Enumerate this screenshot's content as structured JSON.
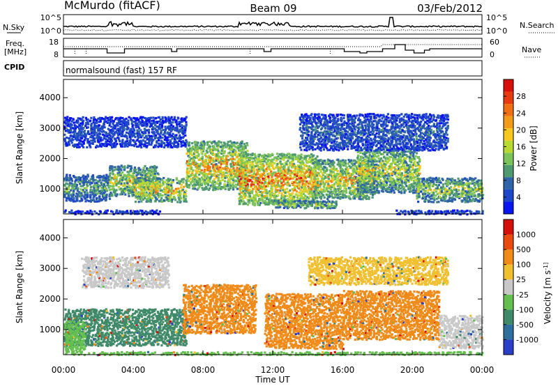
{
  "header": {
    "station": "McMurdo (fitACF)",
    "beam": "Beam 09",
    "date": "03/Feb/2012"
  },
  "nsky_panel": {
    "left_label": "N.Sky",
    "right_label": "N.Search",
    "left_ticks": [
      "10^5",
      "10^0"
    ],
    "right_ticks": [
      "10^5",
      "10^0"
    ]
  },
  "freq_panel": {
    "left_label_1": "Freq.",
    "left_label_2": "[MHz]",
    "left_ticks": [
      "18",
      "8"
    ],
    "right_ticks": [
      "60",
      "0"
    ],
    "right_label": "Nave"
  },
  "cpid_panel": {
    "label": "CPID",
    "text": "normalsound (fast) 157 RF"
  },
  "chart_data": [
    {
      "type": "heatmap",
      "title": "",
      "ylabel": "Slant Range [km]",
      "ylim": [
        180,
        4600
      ],
      "yticks": [
        1000,
        2000,
        3000,
        4000
      ],
      "xlim": [
        0,
        24
      ],
      "colorbar": {
        "label": "Power [dB]",
        "ticks": [
          "4",
          "8",
          "12",
          "16",
          "20",
          "24",
          "28"
        ],
        "colors": [
          "#0a14f0",
          "#1e46c8",
          "#2f64a8",
          "#4f9a70",
          "#7cc45a",
          "#b7d932",
          "#f6c81e",
          "#f29b18",
          "#ef6f12",
          "#e83a10",
          "#d8100c"
        ]
      },
      "echo_regions": [
        {
          "t0": 0.0,
          "t1": 5.5,
          "r0": 200,
          "r1": 330,
          "level": 0.15
        },
        {
          "t0": 0.0,
          "t1": 2.6,
          "r0": 620,
          "r1": 1500,
          "level": 0.4
        },
        {
          "t0": 2.6,
          "t1": 5.4,
          "r0": 800,
          "r1": 1800,
          "level": 0.6
        },
        {
          "t0": 4.0,
          "t1": 7.0,
          "r0": 600,
          "r1": 1400,
          "level": 0.7
        },
        {
          "t0": 7.0,
          "t1": 10.5,
          "r0": 1000,
          "r1": 2600,
          "level": 0.75
        },
        {
          "t0": 10.0,
          "t1": 14.5,
          "r0": 500,
          "r1": 2200,
          "level": 0.85
        },
        {
          "t0": 12.0,
          "t1": 15.6,
          "r0": 400,
          "r1": 650,
          "level": 0.55
        },
        {
          "t0": 14.2,
          "t1": 17.8,
          "r0": 700,
          "r1": 2000,
          "level": 0.7
        },
        {
          "t0": 16.8,
          "t1": 20.4,
          "r0": 900,
          "r1": 2400,
          "level": 0.6
        },
        {
          "t0": 20.2,
          "t1": 24.0,
          "r0": 600,
          "r1": 1400,
          "level": 0.55
        },
        {
          "t0": 19.0,
          "t1": 24.0,
          "r0": 200,
          "r1": 330,
          "level": 0.2
        },
        {
          "t0": 0.0,
          "t1": 7.0,
          "r0": 2400,
          "r1": 3400,
          "level": 0.2
        },
        {
          "t0": 13.5,
          "t1": 22.0,
          "r0": 2300,
          "r1": 3500,
          "level": 0.25
        }
      ]
    },
    {
      "type": "heatmap",
      "title": "",
      "ylabel": "Slant Range [km]",
      "ylim": [
        180,
        4600
      ],
      "yticks": [
        1000,
        2000,
        3000,
        4000
      ],
      "xlim": [
        0,
        24
      ],
      "xlabel": "Time UT",
      "xticks": [
        "00:00",
        "04:00",
        "08:00",
        "12:00",
        "16:00",
        "20:00",
        "00:00"
      ],
      "colorbar": {
        "label": "Velocity [m s^-1]",
        "ticks": [
          "1000",
          "500",
          "100",
          "25",
          "-25",
          "-100",
          "-500",
          "-1000"
        ],
        "colors": [
          "#2a3ec8",
          "#2f6fa0",
          "#3f8a68",
          "#64c04e",
          "#c8c8c8",
          "#f0c030",
          "#f08a18",
          "#e84a10",
          "#d4100c"
        ]
      },
      "echo_regions": [
        {
          "t0": 0.0,
          "t1": 7.0,
          "r0": 500,
          "r1": 1700,
          "level": 0.0
        },
        {
          "t0": 0.0,
          "t1": 1.2,
          "r0": 300,
          "r1": 1300,
          "level": 0.4
        },
        {
          "t0": 6.8,
          "t1": 11.0,
          "r0": 900,
          "r1": 2500,
          "level": 0.8
        },
        {
          "t0": 11.5,
          "t1": 16.0,
          "r0": 400,
          "r1": 2200,
          "level": 0.8
        },
        {
          "t0": 16.0,
          "t1": 21.5,
          "r0": 700,
          "r1": 2300,
          "level": 0.8
        },
        {
          "t0": 21.5,
          "t1": 24.0,
          "r0": 400,
          "r1": 1500,
          "level": 0.3
        },
        {
          "t0": 0.0,
          "t1": 24.0,
          "r0": 200,
          "r1": 300,
          "level": 0.5
        },
        {
          "t0": 1.0,
          "t1": 6.0,
          "r0": 2400,
          "r1": 3400,
          "level": 0.3
        },
        {
          "t0": 14.0,
          "t1": 22.0,
          "r0": 2500,
          "r1": 3400,
          "level": 0.55
        }
      ]
    }
  ]
}
